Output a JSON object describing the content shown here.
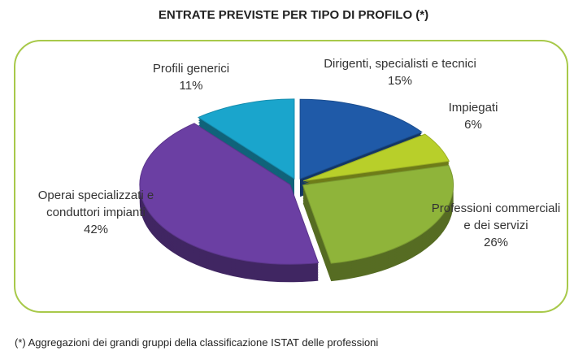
{
  "chart_data": {
    "type": "pie",
    "title": "ENTRATE PREVISTE PER TIPO DI PROFILO (*)",
    "categories": [
      "Dirigenti, specialisti e tecnici",
      "Impiegati",
      "Professioni commerciali e dei servizi",
      "Operai specializzati e conduttori impianti",
      "Profili generici"
    ],
    "values": [
      15,
      6,
      26,
      42,
      11
    ],
    "value_labels": [
      "15%",
      "6%",
      "26%",
      "42%",
      "11%"
    ],
    "colors": [
      "#1f5aa8",
      "#b8cf2a",
      "#8fb43a",
      "#6b3fa3",
      "#1aa5cc"
    ],
    "footnote": "(*) Aggregazioni dei grandi gruppi della classificazione ISTAT delle professioni"
  }
}
